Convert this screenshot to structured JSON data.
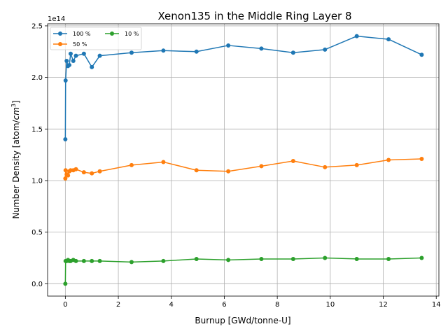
{
  "chart_data": {
    "type": "line",
    "title": "Xenon135 in the Middle Ring Layer 8",
    "xlabel": "Burnup [GWd/tonne-U]",
    "ylabel_prefix": "Number Density [atom/",
    "ylabel_unit": "cm",
    "ylabel_exp": "3",
    "ylabel_suffix": "]",
    "y_offset_text": "1e14",
    "xlim": [
      -0.67,
      14.1
    ],
    "ylim": [
      -0.12,
      2.52
    ],
    "y_scale_factor": 100000000000000.0,
    "xticks": [
      0,
      2,
      4,
      6,
      8,
      10,
      12,
      14
    ],
    "yticks": [
      0.0,
      0.5,
      1.0,
      1.5,
      2.0,
      2.5
    ],
    "ytick_labels": [
      "0.0",
      "0.5",
      "1.0",
      "1.5",
      "2.0",
      "2.5"
    ],
    "grid": true,
    "legend_position": "top-left",
    "legend_columns": 2,
    "x": [
      0.0,
      0.01,
      0.05,
      0.1,
      0.15,
      0.2,
      0.3,
      0.4,
      0.7,
      1.0,
      1.3,
      2.5,
      3.7,
      4.95,
      6.15,
      7.4,
      8.6,
      9.8,
      11.0,
      12.2,
      13.45
    ],
    "series": [
      {
        "name": "100 %",
        "color": "#1f77b4",
        "values": [
          1.4,
          1.97,
          2.16,
          2.11,
          2.12,
          2.23,
          2.16,
          2.21,
          2.23,
          2.1,
          2.21,
          2.24,
          2.26,
          2.25,
          2.31,
          2.28,
          2.24,
          2.27,
          2.4,
          2.37,
          2.22
        ]
      },
      {
        "name": "50 %",
        "color": "#ff7f0e",
        "values": [
          1.02,
          1.1,
          1.06,
          1.05,
          1.09,
          1.1,
          1.1,
          1.11,
          1.08,
          1.07,
          1.09,
          1.15,
          1.18,
          1.1,
          1.09,
          1.14,
          1.19,
          1.13,
          1.15,
          1.2,
          1.21
        ]
      },
      {
        "name": "10 %",
        "color": "#2ca02c",
        "values": [
          0.0,
          0.22,
          0.22,
          0.23,
          0.22,
          0.22,
          0.23,
          0.22,
          0.22,
          0.22,
          0.22,
          0.21,
          0.22,
          0.24,
          0.23,
          0.24,
          0.24,
          0.25,
          0.24,
          0.24,
          0.25
        ]
      }
    ]
  }
}
